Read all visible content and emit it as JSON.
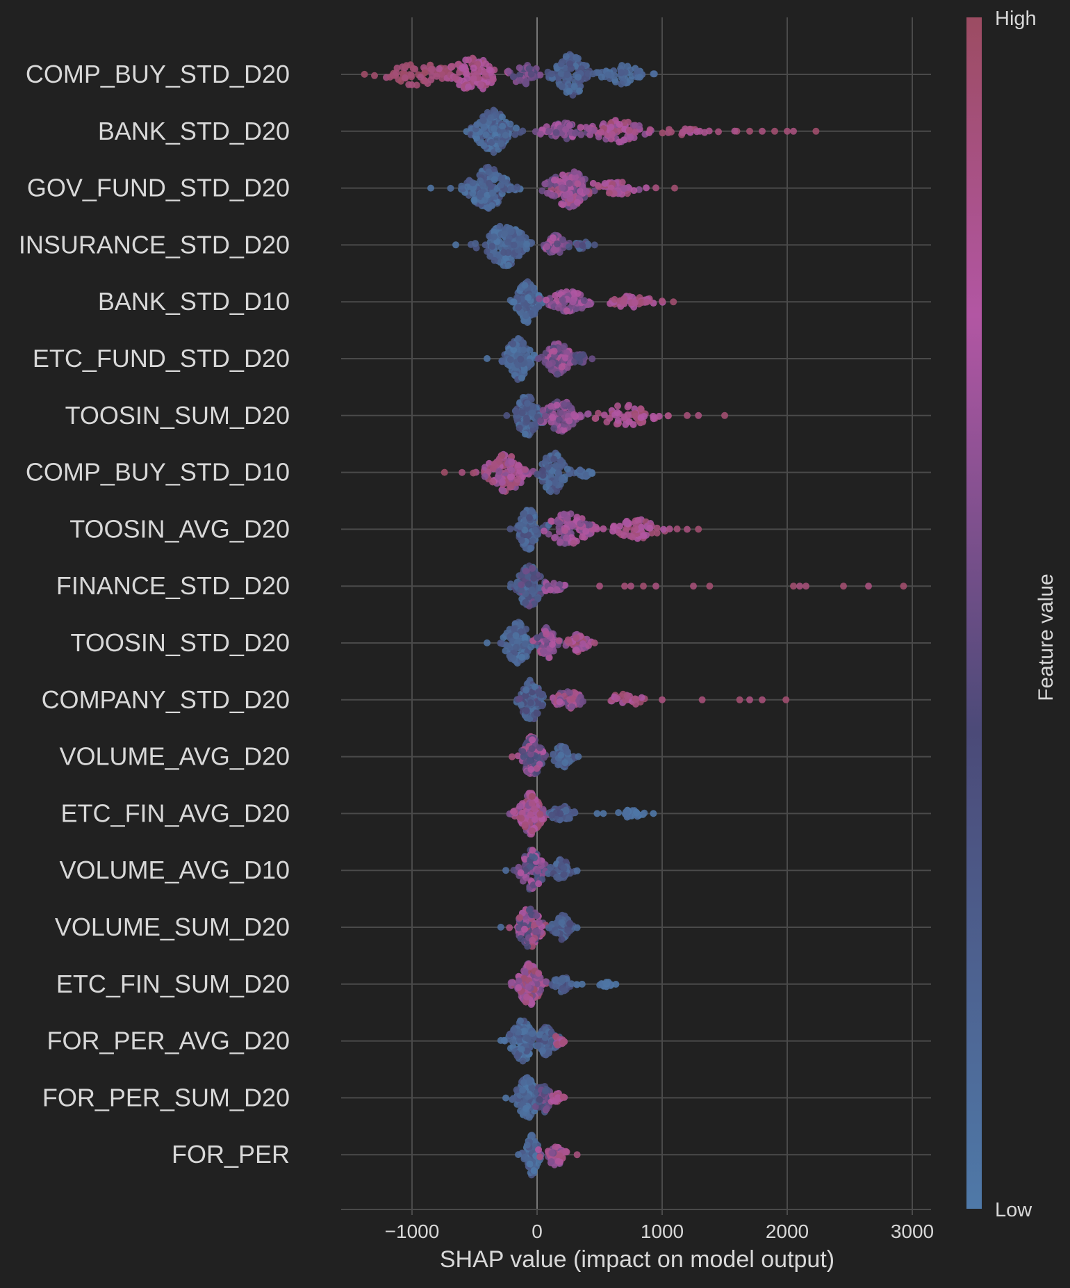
{
  "chart_data": {
    "type": "scatter",
    "subtype": "shap-beeswarm",
    "title": "",
    "xlabel": "SHAP value (impact on model output)",
    "ylabel": "",
    "xlim": [
      -1550,
      3150
    ],
    "xticks": [
      -1000,
      0,
      1000,
      2000,
      3000
    ],
    "xtick_labels": [
      "−1000",
      "0",
      "1000",
      "2000",
      "3000"
    ],
    "grid": true,
    "colorbar": {
      "label": "Feature value",
      "high_label": "High",
      "low_label": "Low",
      "colors": [
        "#4f79a8",
        "#4b4a78",
        "#b256a3",
        "#9c4c62"
      ]
    },
    "colors": {
      "background": "#212121",
      "grid": "#4a4a4a",
      "text": "#d8d8d8"
    },
    "features": [
      {
        "name": "COMP_BUY_STD_D20",
        "min": -1400,
        "max": 950,
        "peak": 250,
        "clusters": [
          {
            "c": -950,
            "w": 280,
            "n": 60,
            "f": [
              0.88,
              0.99
            ]
          },
          {
            "c": -500,
            "w": 220,
            "n": 90,
            "f": [
              0.7,
              0.92
            ]
          },
          {
            "c": -100,
            "w": 150,
            "n": 50,
            "f": [
              0.4,
              0.65
            ]
          },
          {
            "c": 280,
            "w": 150,
            "n": 120,
            "f": [
              0.05,
              0.35
            ]
          },
          {
            "c": 700,
            "w": 180,
            "n": 50,
            "f": [
              0.05,
              0.25
            ]
          }
        ],
        "outliers": [
          [
            -1380,
            0.98
          ],
          [
            -1300,
            0.96
          ],
          [
            930,
            0.1
          ]
        ]
      },
      {
        "name": "BANK_STD_D20",
        "min": -700,
        "max": 2250,
        "peak": -300,
        "clusters": [
          {
            "c": -350,
            "w": 170,
            "n": 150,
            "f": [
              0.0,
              0.32
            ]
          },
          {
            "c": 200,
            "w": 200,
            "n": 50,
            "f": [
              0.45,
              0.75
            ]
          },
          {
            "c": 650,
            "w": 250,
            "n": 70,
            "f": [
              0.6,
              0.95
            ]
          },
          {
            "c": 1200,
            "w": 250,
            "n": 20,
            "f": [
              0.75,
              0.99
            ]
          }
        ],
        "outliers": [
          [
            1450,
            0.9
          ],
          [
            1580,
            0.85
          ],
          [
            1700,
            0.95
          ],
          [
            1800,
            0.9
          ],
          [
            1900,
            0.95
          ],
          [
            2000,
            0.92
          ],
          [
            2050,
            0.9
          ],
          [
            2230,
            0.97
          ]
        ]
      },
      {
        "name": "GOV_FUND_STD_D20",
        "min": -850,
        "max": 1100,
        "peak": -350,
        "clusters": [
          {
            "c": -400,
            "w": 200,
            "n": 150,
            "f": [
              0.0,
              0.35
            ]
          },
          {
            "c": 250,
            "w": 180,
            "n": 140,
            "f": [
              0.45,
              0.9
            ]
          },
          {
            "c": 650,
            "w": 200,
            "n": 40,
            "f": [
              0.6,
              0.95
            ]
          }
        ],
        "outliers": [
          [
            -850,
            0.05
          ],
          [
            1100,
            0.95
          ],
          [
            950,
            0.9
          ]
        ]
      },
      {
        "name": "INSURANCE_STD_D20",
        "min": -650,
        "max": 470,
        "peak": -200,
        "clusters": [
          {
            "c": -250,
            "w": 200,
            "n": 170,
            "f": [
              0.0,
              0.3
            ]
          },
          {
            "c": 150,
            "w": 100,
            "n": 70,
            "f": [
              0.4,
              0.8
            ]
          },
          {
            "c": 350,
            "w": 80,
            "n": 25,
            "f": [
              0.1,
              0.5
            ]
          }
        ],
        "outliers": [
          [
            -650,
            0.05
          ],
          [
            460,
            0.3
          ]
        ]
      },
      {
        "name": "BANK_STD_D10",
        "min": -300,
        "max": 1100,
        "peak": -80,
        "clusters": [
          {
            "c": -80,
            "w": 100,
            "n": 150,
            "f": [
              0.0,
              0.3
            ]
          },
          {
            "c": 250,
            "w": 180,
            "n": 70,
            "f": [
              0.5,
              0.8
            ]
          },
          {
            "c": 750,
            "w": 200,
            "n": 40,
            "f": [
              0.7,
              0.95
            ]
          }
        ],
        "outliers": [
          [
            1090,
            0.95
          ],
          [
            1000,
            0.9
          ],
          [
            620,
            0.9
          ]
        ]
      },
      {
        "name": "ETC_FUND_STD_D20",
        "min": -400,
        "max": 450,
        "peak": 150,
        "clusters": [
          {
            "c": -150,
            "w": 120,
            "n": 120,
            "f": [
              0.0,
              0.3
            ]
          },
          {
            "c": 170,
            "w": 110,
            "n": 100,
            "f": [
              0.4,
              0.85
            ]
          },
          {
            "c": 350,
            "w": 60,
            "n": 20,
            "f": [
              0.3,
              0.6
            ]
          }
        ],
        "outliers": [
          [
            -400,
            0.05
          ],
          [
            440,
            0.5
          ]
        ]
      },
      {
        "name": "TOOSIN_SUM_D20",
        "min": -380,
        "max": 1500,
        "peak": -80,
        "clusters": [
          {
            "c": -80,
            "w": 110,
            "n": 110,
            "f": [
              0.05,
              0.35
            ]
          },
          {
            "c": 200,
            "w": 170,
            "n": 80,
            "f": [
              0.45,
              0.8
            ]
          },
          {
            "c": 700,
            "w": 250,
            "n": 50,
            "f": [
              0.7,
              0.95
            ]
          }
        ],
        "outliers": [
          [
            1500,
            0.95
          ],
          [
            1290,
            0.9
          ],
          [
            1200,
            0.92
          ],
          [
            1050,
            0.9
          ]
        ]
      },
      {
        "name": "COMP_BUY_STD_D10",
        "min": -750,
        "max": 450,
        "peak": 100,
        "clusters": [
          {
            "c": -250,
            "w": 180,
            "n": 100,
            "f": [
              0.6,
              0.95
            ]
          },
          {
            "c": 130,
            "w": 120,
            "n": 110,
            "f": [
              0.05,
              0.4
            ]
          },
          {
            "c": 380,
            "w": 60,
            "n": 20,
            "f": [
              0.05,
              0.2
            ]
          }
        ],
        "outliers": [
          [
            -740,
            0.98
          ],
          [
            -600,
            0.9
          ],
          [
            -510,
            0.95
          ],
          [
            440,
            0.05
          ]
        ]
      },
      {
        "name": "TOOSIN_AVG_D20",
        "min": -250,
        "max": 1300,
        "peak": -80,
        "clusters": [
          {
            "c": -70,
            "w": 90,
            "n": 120,
            "f": [
              0.05,
              0.4
            ]
          },
          {
            "c": 250,
            "w": 200,
            "n": 90,
            "f": [
              0.5,
              0.85
            ]
          },
          {
            "c": 800,
            "w": 220,
            "n": 50,
            "f": [
              0.7,
              0.95
            ]
          }
        ],
        "outliers": [
          [
            1290,
            0.95
          ],
          [
            1200,
            0.9
          ],
          [
            1120,
            0.92
          ]
        ]
      },
      {
        "name": "FINANCE_STD_D20",
        "min": -350,
        "max": 2950,
        "peak": -50,
        "clusters": [
          {
            "c": -60,
            "w": 120,
            "n": 150,
            "f": [
              0.05,
              0.55
            ]
          },
          {
            "c": 150,
            "w": 80,
            "n": 25,
            "f": [
              0.5,
              0.8
            ]
          }
        ],
        "outliers": [
          [
            500,
            0.9
          ],
          [
            700,
            0.92
          ],
          [
            750,
            0.9
          ],
          [
            850,
            0.95
          ],
          [
            950,
            0.9
          ],
          [
            1250,
            0.92
          ],
          [
            1380,
            0.95
          ],
          [
            2050,
            0.95
          ],
          [
            2100,
            0.9
          ],
          [
            2150,
            0.92
          ],
          [
            2450,
            0.95
          ],
          [
            2650,
            0.9
          ],
          [
            2930,
            0.97
          ]
        ]
      },
      {
        "name": "TOOSIN_STD_D20",
        "min": -400,
        "max": 470,
        "peak": 50,
        "clusters": [
          {
            "c": -150,
            "w": 130,
            "n": 110,
            "f": [
              0.0,
              0.3
            ]
          },
          {
            "c": 80,
            "w": 80,
            "n": 80,
            "f": [
              0.4,
              0.85
            ]
          },
          {
            "c": 320,
            "w": 100,
            "n": 40,
            "f": [
              0.6,
              0.95
            ]
          }
        ],
        "outliers": [
          [
            -400,
            0.05
          ],
          [
            460,
            0.9
          ]
        ]
      },
      {
        "name": "COMPANY_STD_D20",
        "min": -250,
        "max": 2000,
        "peak": 0,
        "clusters": [
          {
            "c": -50,
            "w": 100,
            "n": 110,
            "f": [
              0.05,
              0.5
            ]
          },
          {
            "c": 250,
            "w": 130,
            "n": 45,
            "f": [
              0.5,
              0.9
            ]
          },
          {
            "c": 700,
            "w": 200,
            "n": 25,
            "f": [
              0.7,
              0.95
            ]
          }
        ],
        "outliers": [
          [
            1000,
            0.9
          ],
          [
            1320,
            0.92
          ],
          [
            1620,
            0.95
          ],
          [
            1700,
            0.9
          ],
          [
            1800,
            0.92
          ],
          [
            1990,
            0.95
          ]
        ]
      },
      {
        "name": "VOLUME_AVG_D20",
        "min": -200,
        "max": 340,
        "peak": -50,
        "clusters": [
          {
            "c": -40,
            "w": 90,
            "n": 120,
            "f": [
              0.3,
              0.85
            ]
          },
          {
            "c": 200,
            "w": 80,
            "n": 60,
            "f": [
              0.05,
              0.35
            ]
          }
        ],
        "outliers": [
          [
            330,
            0.1
          ],
          [
            -200,
            0.9
          ]
        ]
      },
      {
        "name": "ETC_FIN_AVG_D20",
        "min": -220,
        "max": 930,
        "peak": -50,
        "clusters": [
          {
            "c": -50,
            "w": 110,
            "n": 170,
            "f": [
              0.55,
              0.98
            ]
          },
          {
            "c": 200,
            "w": 100,
            "n": 60,
            "f": [
              0.05,
              0.4
            ]
          },
          {
            "c": 750,
            "w": 100,
            "n": 25,
            "f": [
              0.0,
              0.1
            ]
          }
        ],
        "outliers": [
          [
            930,
            0.02
          ],
          [
            480,
            0.05
          ],
          [
            530,
            0.05
          ]
        ]
      },
      {
        "name": "VOLUME_AVG_D10",
        "min": -250,
        "max": 330,
        "peak": -30,
        "clusters": [
          {
            "c": -40,
            "w": 110,
            "n": 100,
            "f": [
              0.2,
              0.8
            ]
          },
          {
            "c": 200,
            "w": 80,
            "n": 50,
            "f": [
              0.05,
              0.4
            ]
          }
        ],
        "outliers": [
          [
            -250,
            0.1
          ],
          [
            320,
            0.1
          ]
        ]
      },
      {
        "name": "VOLUME_SUM_D20",
        "min": -290,
        "max": 330,
        "peak": -50,
        "clusters": [
          {
            "c": -60,
            "w": 110,
            "n": 110,
            "f": [
              0.3,
              0.95
            ]
          },
          {
            "c": 200,
            "w": 80,
            "n": 60,
            "f": [
              0.05,
              0.4
            ]
          }
        ],
        "outliers": [
          [
            -290,
            0.1
          ],
          [
            320,
            0.1
          ]
        ]
      },
      {
        "name": "ETC_FIN_SUM_D20",
        "min": -250,
        "max": 640,
        "peak": -50,
        "clusters": [
          {
            "c": -60,
            "w": 110,
            "n": 160,
            "f": [
              0.55,
              0.98
            ]
          },
          {
            "c": 200,
            "w": 90,
            "n": 50,
            "f": [
              0.05,
              0.4
            ]
          },
          {
            "c": 550,
            "w": 60,
            "n": 15,
            "f": [
              0.0,
              0.1
            ]
          }
        ],
        "outliers": [
          [
            630,
            0.02
          ],
          [
            360,
            0.05
          ]
        ]
      },
      {
        "name": "FOR_PER_AVG_D20",
        "min": -290,
        "max": 220,
        "peak": 50,
        "clusters": [
          {
            "c": -120,
            "w": 110,
            "n": 120,
            "f": [
              0.0,
              0.3
            ]
          },
          {
            "c": 80,
            "w": 80,
            "n": 80,
            "f": [
              0.05,
              0.4
            ]
          },
          {
            "c": 180,
            "w": 40,
            "n": 15,
            "f": [
              0.6,
              0.95
            ]
          }
        ],
        "outliers": [
          [
            -290,
            0.05
          ],
          [
            210,
            0.9
          ]
        ]
      },
      {
        "name": "FOR_PER_SUM_D20",
        "min": -250,
        "max": 220,
        "peak": 50,
        "clusters": [
          {
            "c": -80,
            "w": 100,
            "n": 100,
            "f": [
              0.0,
              0.3
            ]
          },
          {
            "c": 60,
            "w": 60,
            "n": 60,
            "f": [
              0.2,
              0.6
            ]
          },
          {
            "c": 170,
            "w": 40,
            "n": 20,
            "f": [
              0.7,
              0.95
            ]
          }
        ],
        "outliers": [
          [
            -250,
            0.05
          ],
          [
            210,
            0.9
          ]
        ]
      },
      {
        "name": "FOR_PER",
        "min": -150,
        "max": 330,
        "peak": -40,
        "clusters": [
          {
            "c": -40,
            "w": 60,
            "n": 110,
            "f": [
              0.0,
              0.3
            ]
          },
          {
            "c": 150,
            "w": 90,
            "n": 50,
            "f": [
              0.5,
              0.95
            ]
          }
        ],
        "outliers": [
          [
            320,
            0.9
          ],
          [
            -150,
            0.1
          ]
        ]
      }
    ]
  }
}
